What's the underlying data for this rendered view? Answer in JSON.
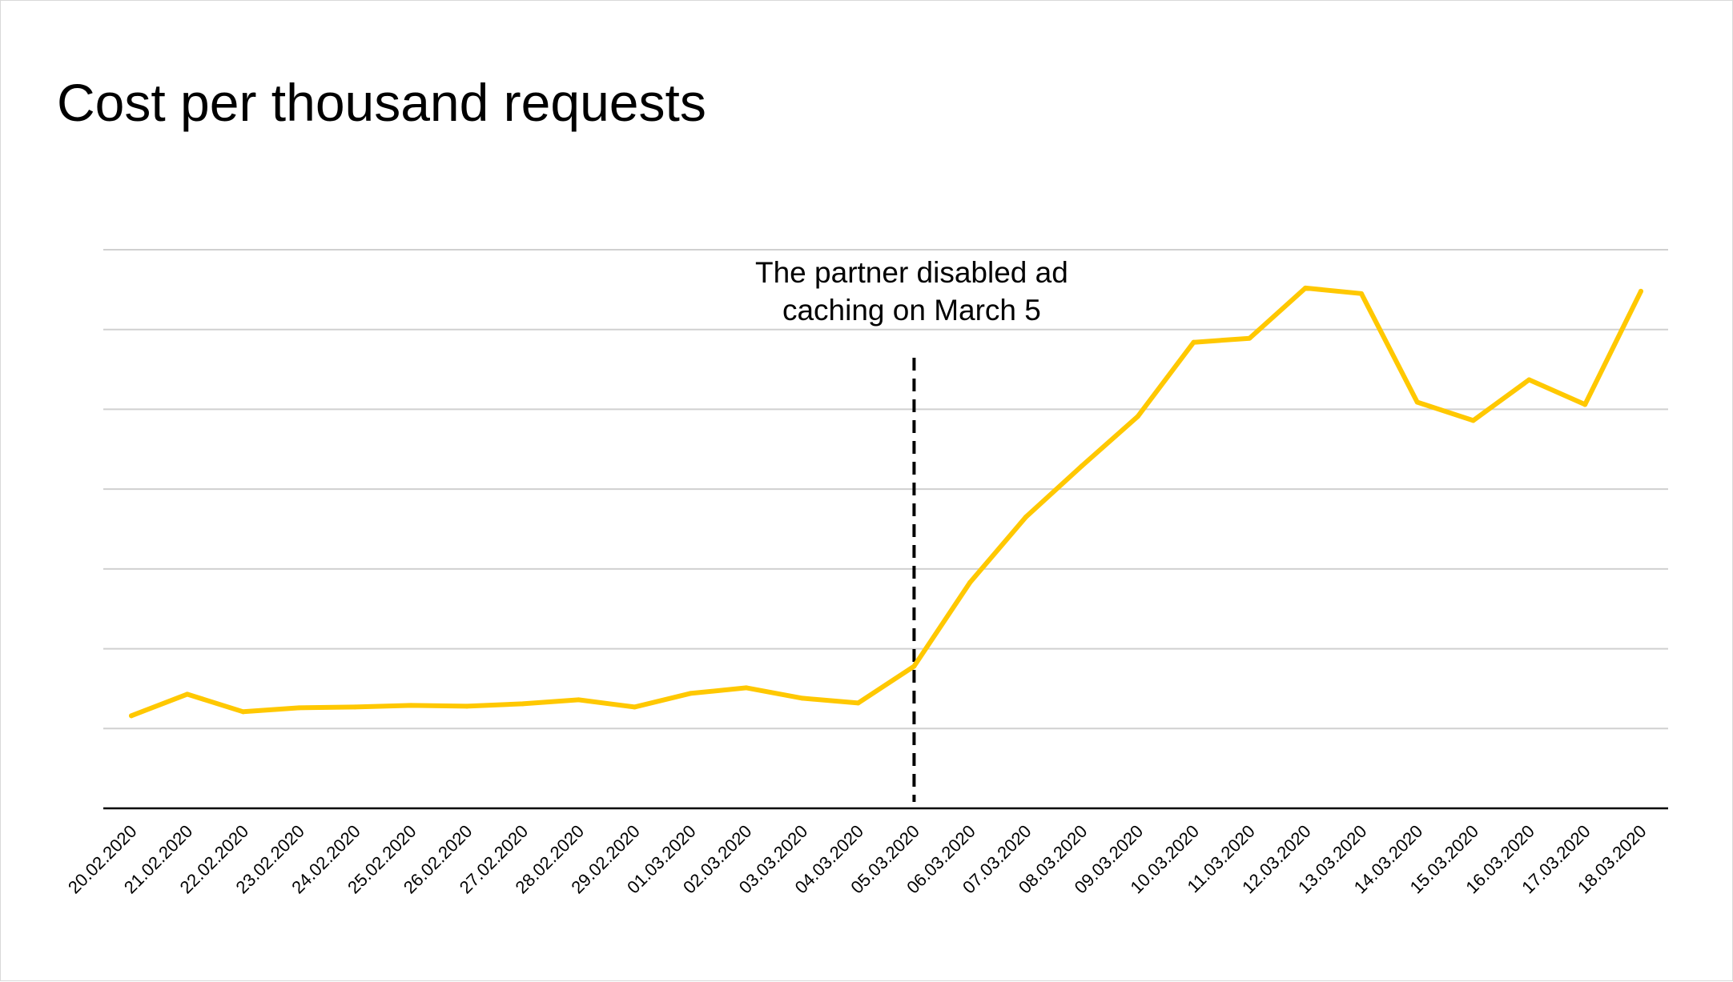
{
  "chart_data": {
    "type": "line",
    "title": "Cost per thousand requests",
    "xlabel": "",
    "ylabel": "",
    "categories": [
      "20.02.2020",
      "21.02.2020",
      "22.02.2020",
      "23.02.2020",
      "24.02.2020",
      "25.02.2020",
      "26.02.2020",
      "27.02.2020",
      "28.02.2020",
      "29.02.2020",
      "01.03.2020",
      "02.03.2020",
      "03.03.2020",
      "04.03.2020",
      "05.03.2020",
      "06.03.2020",
      "07.03.2020",
      "08.03.2020",
      "09.03.2020",
      "10.03.2020",
      "11.03.2020",
      "12.03.2020",
      "13.03.2020",
      "14.03.2020",
      "15.03.2020",
      "16.03.2020",
      "17.03.2020",
      "18.03.2020"
    ],
    "series": [
      {
        "values": [
          1.16,
          1.43,
          1.21,
          1.26,
          1.27,
          1.29,
          1.28,
          1.31,
          1.36,
          1.27,
          1.44,
          1.51,
          1.38,
          1.32,
          1.78,
          2.83,
          3.65,
          4.29,
          4.91,
          5.84,
          5.89,
          6.52,
          6.45,
          5.09,
          4.86,
          5.37,
          5.06,
          6.48
        ],
        "color": "#FFC800"
      }
    ],
    "ylim": [
      0,
      7
    ],
    "ytick_step": 1,
    "y_tick_labels_shown": false,
    "grid": true,
    "legend": "none",
    "annotations": [
      {
        "category": "05.03.2020",
        "style": "dashed-vertical-line",
        "text_lines": [
          "The partner disabled ad",
          "caching on March 5"
        ]
      }
    ]
  },
  "colors": {
    "series": "#FFC800",
    "grid": "#d0d0d0",
    "axis": "#000000",
    "annotation_line": "#000000"
  }
}
